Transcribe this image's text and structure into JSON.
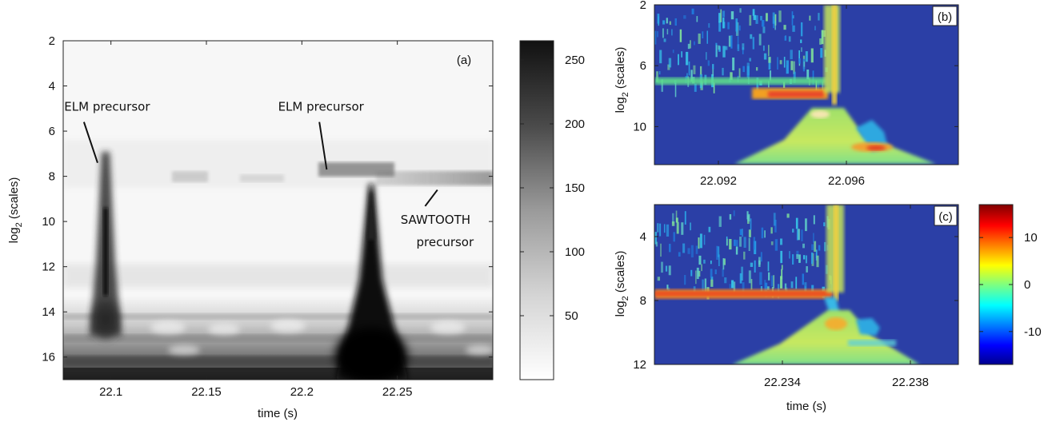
{
  "chart_data": [
    {
      "panel": "(a)",
      "type": "heatmap",
      "colormap": "gray-reversed",
      "xlabel": "time (s)",
      "ylabel_base": "log",
      "ylabel_sub": "2",
      "ylabel_rest": " (scales)",
      "xlim": [
        22.075,
        22.3
      ],
      "ylim": [
        17,
        2
      ],
      "xticks": [
        22.1,
        22.15,
        22.2,
        22.25
      ],
      "xtick_labels": [
        "22.1",
        "22.15",
        "22.2",
        "22.25"
      ],
      "yticks": [
        2,
        4,
        6,
        8,
        10,
        12,
        14,
        16
      ],
      "ytick_labels": [
        "2",
        "4",
        "6",
        "8",
        "10",
        "12",
        "14",
        "16"
      ],
      "colorbar": {
        "range": [
          0,
          265
        ],
        "ticks": [
          50,
          100,
          150,
          200,
          250
        ],
        "tick_labels": [
          "50",
          "100",
          "150",
          "200",
          "250"
        ]
      },
      "annotations": [
        {
          "text": "ELM precursor",
          "x": 22.098,
          "y": 5.1,
          "pointer_to": [
            22.093,
            7.4
          ]
        },
        {
          "text": "ELM precursor",
          "x": 22.21,
          "y": 5.1,
          "pointer_to": [
            22.213,
            7.7
          ]
        },
        {
          "text": "SAWTOOTH",
          "x": 22.27,
          "y": 10.1,
          "pointer_to": [
            22.271,
            8.6
          ]
        },
        {
          "text": "precursor",
          "x": 22.275,
          "y": 11.1
        }
      ],
      "events": [
        {
          "name": "ELM",
          "time": 22.095,
          "low_scale_energy": 235,
          "precursor_scale": 7.4
        },
        {
          "name": "ELM",
          "time": 22.235,
          "low_scale_energy": 260,
          "precursor_scale": 7.7
        },
        {
          "name": "sawtooth precursor band",
          "time_range": [
            22.255,
            22.3
          ],
          "scale": 8.1,
          "energy": 90
        }
      ]
    },
    {
      "panel": "(b)",
      "type": "heatmap",
      "colormap": "jet",
      "xlim": [
        22.09,
        22.0995
      ],
      "ylim": [
        12.5,
        2
      ],
      "xticks": [
        22.092,
        22.096
      ],
      "xtick_labels": [
        "22.092",
        "22.096"
      ],
      "yticks": [
        2,
        6,
        10
      ],
      "ytick_labels": [
        "2",
        "6",
        "10"
      ],
      "ylabel_base": "log",
      "ylabel_sub": "2",
      "ylabel_rest": " (scales)",
      "event_time": 22.0955
    },
    {
      "panel": "(c)",
      "type": "heatmap",
      "colormap": "jet",
      "xlabel": "time (s)",
      "xlim": [
        22.23,
        22.2395
      ],
      "ylim": [
        12,
        2
      ],
      "xticks": [
        22.234,
        22.238
      ],
      "xtick_labels": [
        "22.234",
        "22.238"
      ],
      "yticks": [
        4,
        8,
        12
      ],
      "ytick_labels": [
        "4",
        "8",
        "12"
      ],
      "ylabel_base": "log",
      "ylabel_sub": "2",
      "ylabel_rest": " (scales)",
      "event_time": 22.2355,
      "colorbar": {
        "range": [
          -17,
          17
        ],
        "ticks": [
          -10,
          0,
          10
        ],
        "tick_labels": [
          "-10",
          "0",
          "10"
        ]
      }
    }
  ]
}
